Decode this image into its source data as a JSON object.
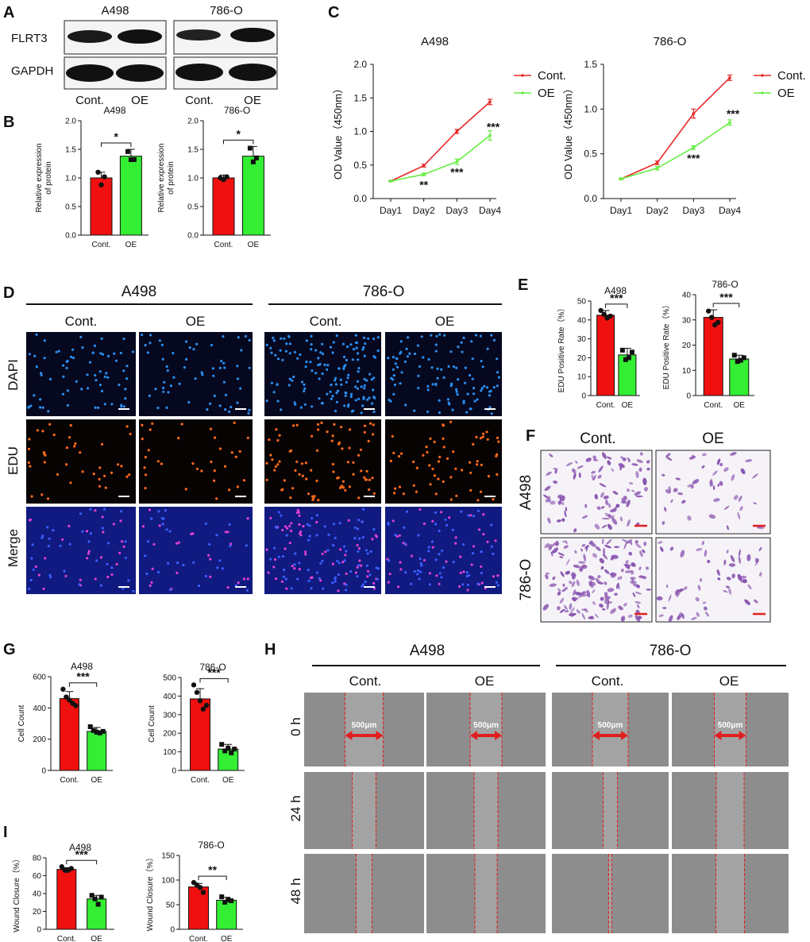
{
  "panel_labels": {
    "A": "A",
    "B": "B",
    "C": "C",
    "D": "D",
    "E": "E",
    "F": "F",
    "G": "G",
    "H": "H",
    "I": "I"
  },
  "panel_a": {
    "blot_groups": [
      "A498",
      "786-O"
    ],
    "bands": [
      "FLRT3",
      "GAPDH"
    ],
    "lanes": [
      "Cont.",
      "OE",
      "Cont.",
      "OE"
    ]
  },
  "microscopy": {
    "panel_d": {
      "cell_lines": [
        "A498",
        "786-O"
      ],
      "conditions": [
        "Cont.",
        "OE",
        "Cont.",
        "OE"
      ],
      "rows": [
        "DAPI",
        "EDU",
        "Merge"
      ],
      "colors": {
        "dapi": "#2a8ef0",
        "edu": "#ff6a1a",
        "merge_bg": "#101a80",
        "merge_dot": "#e040d0",
        "dapi_bg": "#05081f",
        "edu_bg": "#080303"
      }
    },
    "panel_f": {
      "conditions": [
        "Cont.",
        "OE"
      ],
      "rows": [
        "A498",
        "786-O"
      ],
      "colors": {
        "stain": "#8a55b0",
        "bg": "#f6f3f8",
        "scale": "#e02020"
      }
    },
    "panel_h": {
      "cell_lines": [
        "A498",
        "786-O"
      ],
      "conditions": [
        "Cont.",
        "OE",
        "Cont.",
        "OE"
      ],
      "rows": [
        "0 h",
        "24 h",
        "48 h"
      ],
      "scale_label": "500μm",
      "colors": {
        "bg": "#8d8d8d",
        "wound": "#a3a3a3",
        "line": "#e02020"
      }
    }
  },
  "chart_data": [
    {
      "id": "B1",
      "type": "bar",
      "title": "A498",
      "categories": [
        "Cont.",
        "OE"
      ],
      "values": [
        1.0,
        1.38
      ],
      "errors": [
        0.1,
        0.12
      ],
      "points": [
        [
          1.1,
          0.88,
          1.02
        ],
        [
          1.46,
          1.32,
          1.32
        ]
      ],
      "ylim": [
        0,
        2.0
      ],
      "yticks": [
        "0.0",
        "0.5",
        "1.0",
        "1.5",
        "2.0"
      ],
      "ylabel_lines": [
        "Relative expression",
        "of protein"
      ],
      "significance": "*",
      "colors": [
        "#f01010",
        "#33ee33"
      ]
    },
    {
      "id": "B2",
      "type": "bar",
      "title": "786-O",
      "categories": [
        "Cont.",
        "OE"
      ],
      "values": [
        1.0,
        1.38
      ],
      "errors": [
        0.05,
        0.17
      ],
      "points": [
        [
          1.0,
          0.97,
          1.02
        ],
        [
          1.52,
          1.28,
          1.35
        ]
      ],
      "ylim": [
        0,
        2.0
      ],
      "yticks": [
        "0.0",
        "0.5",
        "1.0",
        "1.5",
        "2.0"
      ],
      "ylabel_lines": [
        "Relative expression",
        "of protein"
      ],
      "significance": "*",
      "colors": [
        "#f01010",
        "#33ee33"
      ]
    },
    {
      "id": "C1",
      "type": "line",
      "title": "A498",
      "categories": [
        "Day1",
        "Day2",
        "Day3",
        "Day4"
      ],
      "series": [
        {
          "name": "Cont.",
          "values": [
            0.26,
            0.49,
            1.0,
            1.44
          ],
          "errors": [
            0.01,
            0.02,
            0.03,
            0.04
          ],
          "color": "#e82828"
        },
        {
          "name": "OE",
          "values": [
            0.26,
            0.36,
            0.55,
            0.94
          ],
          "errors": [
            0.01,
            0.02,
            0.04,
            0.07
          ],
          "color": "#66ee44"
        }
      ],
      "ylim": [
        0,
        2.0
      ],
      "yticks": [
        "0.0",
        "0.5",
        "1.0",
        "1.5",
        "2.0"
      ],
      "ylabel": "OD Value（450nm）",
      "annotations": [
        "**",
        "***",
        "***"
      ]
    },
    {
      "id": "C2",
      "type": "line",
      "title": "786-O",
      "categories": [
        "Day1",
        "Day2",
        "Day3",
        "Day4"
      ],
      "series": [
        {
          "name": "Cont.",
          "values": [
            0.22,
            0.4,
            0.95,
            1.35
          ],
          "errors": [
            0.01,
            0.02,
            0.05,
            0.03
          ],
          "color": "#e82828"
        },
        {
          "name": "OE",
          "values": [
            0.22,
            0.34,
            0.57,
            0.85
          ],
          "errors": [
            0.01,
            0.02,
            0.02,
            0.03
          ],
          "color": "#66ee44"
        }
      ],
      "ylim": [
        0,
        1.5
      ],
      "yticks": [
        "0.0",
        "0.5",
        "1.0",
        "1.5"
      ],
      "ylabel": "OD Value（450nm）",
      "annotations": [
        "***",
        "***"
      ]
    },
    {
      "id": "E1",
      "type": "bar",
      "title": "A498",
      "categories": [
        "Cont.",
        "OE"
      ],
      "values": [
        42.5,
        21.5
      ],
      "errors": [
        2.5,
        3.5
      ],
      "points": [
        [
          45,
          43,
          41,
          42
        ],
        [
          24,
          19,
          20,
          23
        ]
      ],
      "ylim": [
        0,
        50
      ],
      "yticks": [
        "0",
        "10",
        "20",
        "30",
        "40",
        "50"
      ],
      "ylabel_lines": [
        "EDU Positive Rate（%）"
      ],
      "significance": "***",
      "colors": [
        "#f01010",
        "#33ee33"
      ]
    },
    {
      "id": "E2",
      "type": "bar",
      "title": "786-O",
      "categories": [
        "Cont.",
        "OE"
      ],
      "values": [
        31,
        14.5
      ],
      "errors": [
        3,
        1.5
      ],
      "points": [
        [
          33.5,
          31,
          28,
          29
        ],
        [
          16,
          13.5,
          14,
          15
        ]
      ],
      "ylim": [
        0,
        40
      ],
      "yticks": [
        "0",
        "10",
        "20",
        "30",
        "40"
      ],
      "ylabel_lines": [
        "EDU Positive Rate（%）"
      ],
      "significance": "***",
      "colors": [
        "#f01010",
        "#33ee33"
      ]
    },
    {
      "id": "G1",
      "type": "bar",
      "title": "A498",
      "categories": [
        "Cont.",
        "OE"
      ],
      "values": [
        460,
        250
      ],
      "errors": [
        45,
        25
      ],
      "points": [
        [
          520,
          470,
          450,
          430,
          415
        ],
        [
          280,
          255,
          245,
          240,
          250
        ]
      ],
      "ylim": [
        0,
        600
      ],
      "yticks": [
        "0",
        "200",
        "400",
        "600"
      ],
      "ylabel_lines": [
        "Cell Count"
      ],
      "significance": "***",
      "colors": [
        "#f01010",
        "#33ee33"
      ]
    },
    {
      "id": "G2",
      "type": "bar",
      "title": "786-O",
      "categories": [
        "Cont.",
        "OE"
      ],
      "values": [
        385,
        115
      ],
      "errors": [
        55,
        25
      ],
      "points": [
        [
          460,
          420,
          375,
          330,
          350
        ],
        [
          140,
          105,
          120,
          95,
          115
        ]
      ],
      "ylim": [
        0,
        500
      ],
      "yticks": [
        "0",
        "100",
        "200",
        "300",
        "400",
        "500"
      ],
      "ylabel_lines": [
        "Cell Count"
      ],
      "significance": "***",
      "colors": [
        "#f01010",
        "#33ee33"
      ]
    },
    {
      "id": "I1",
      "type": "bar",
      "title": "A498",
      "categories": [
        "Cont.",
        "OE"
      ],
      "values": [
        67,
        34
      ],
      "errors": [
        2,
        4
      ],
      "points": [
        [
          70,
          66,
          66,
          68
        ],
        [
          38,
          34,
          28,
          36
        ]
      ],
      "ylim": [
        0,
        80
      ],
      "yticks": [
        "0",
        "20",
        "40",
        "60",
        "80"
      ],
      "ylabel_lines": [
        "Wound Closure（%）"
      ],
      "significance": "***",
      "colors": [
        "#f01010",
        "#33ee33"
      ]
    },
    {
      "id": "I2",
      "type": "bar",
      "title": "786-O",
      "categories": [
        "Cont.",
        "OE"
      ],
      "values": [
        86,
        59
      ],
      "errors": [
        7,
        6
      ],
      "points": [
        [
          95,
          90,
          85,
          75
        ],
        [
          66,
          55,
          60,
          58
        ]
      ],
      "ylim": [
        0,
        150
      ],
      "yticks": [
        "0",
        "50",
        "100",
        "150"
      ],
      "ylabel_lines": [
        "Wound Closure（%）"
      ],
      "significance": "**",
      "colors": [
        "#f01010",
        "#33ee33"
      ]
    }
  ]
}
